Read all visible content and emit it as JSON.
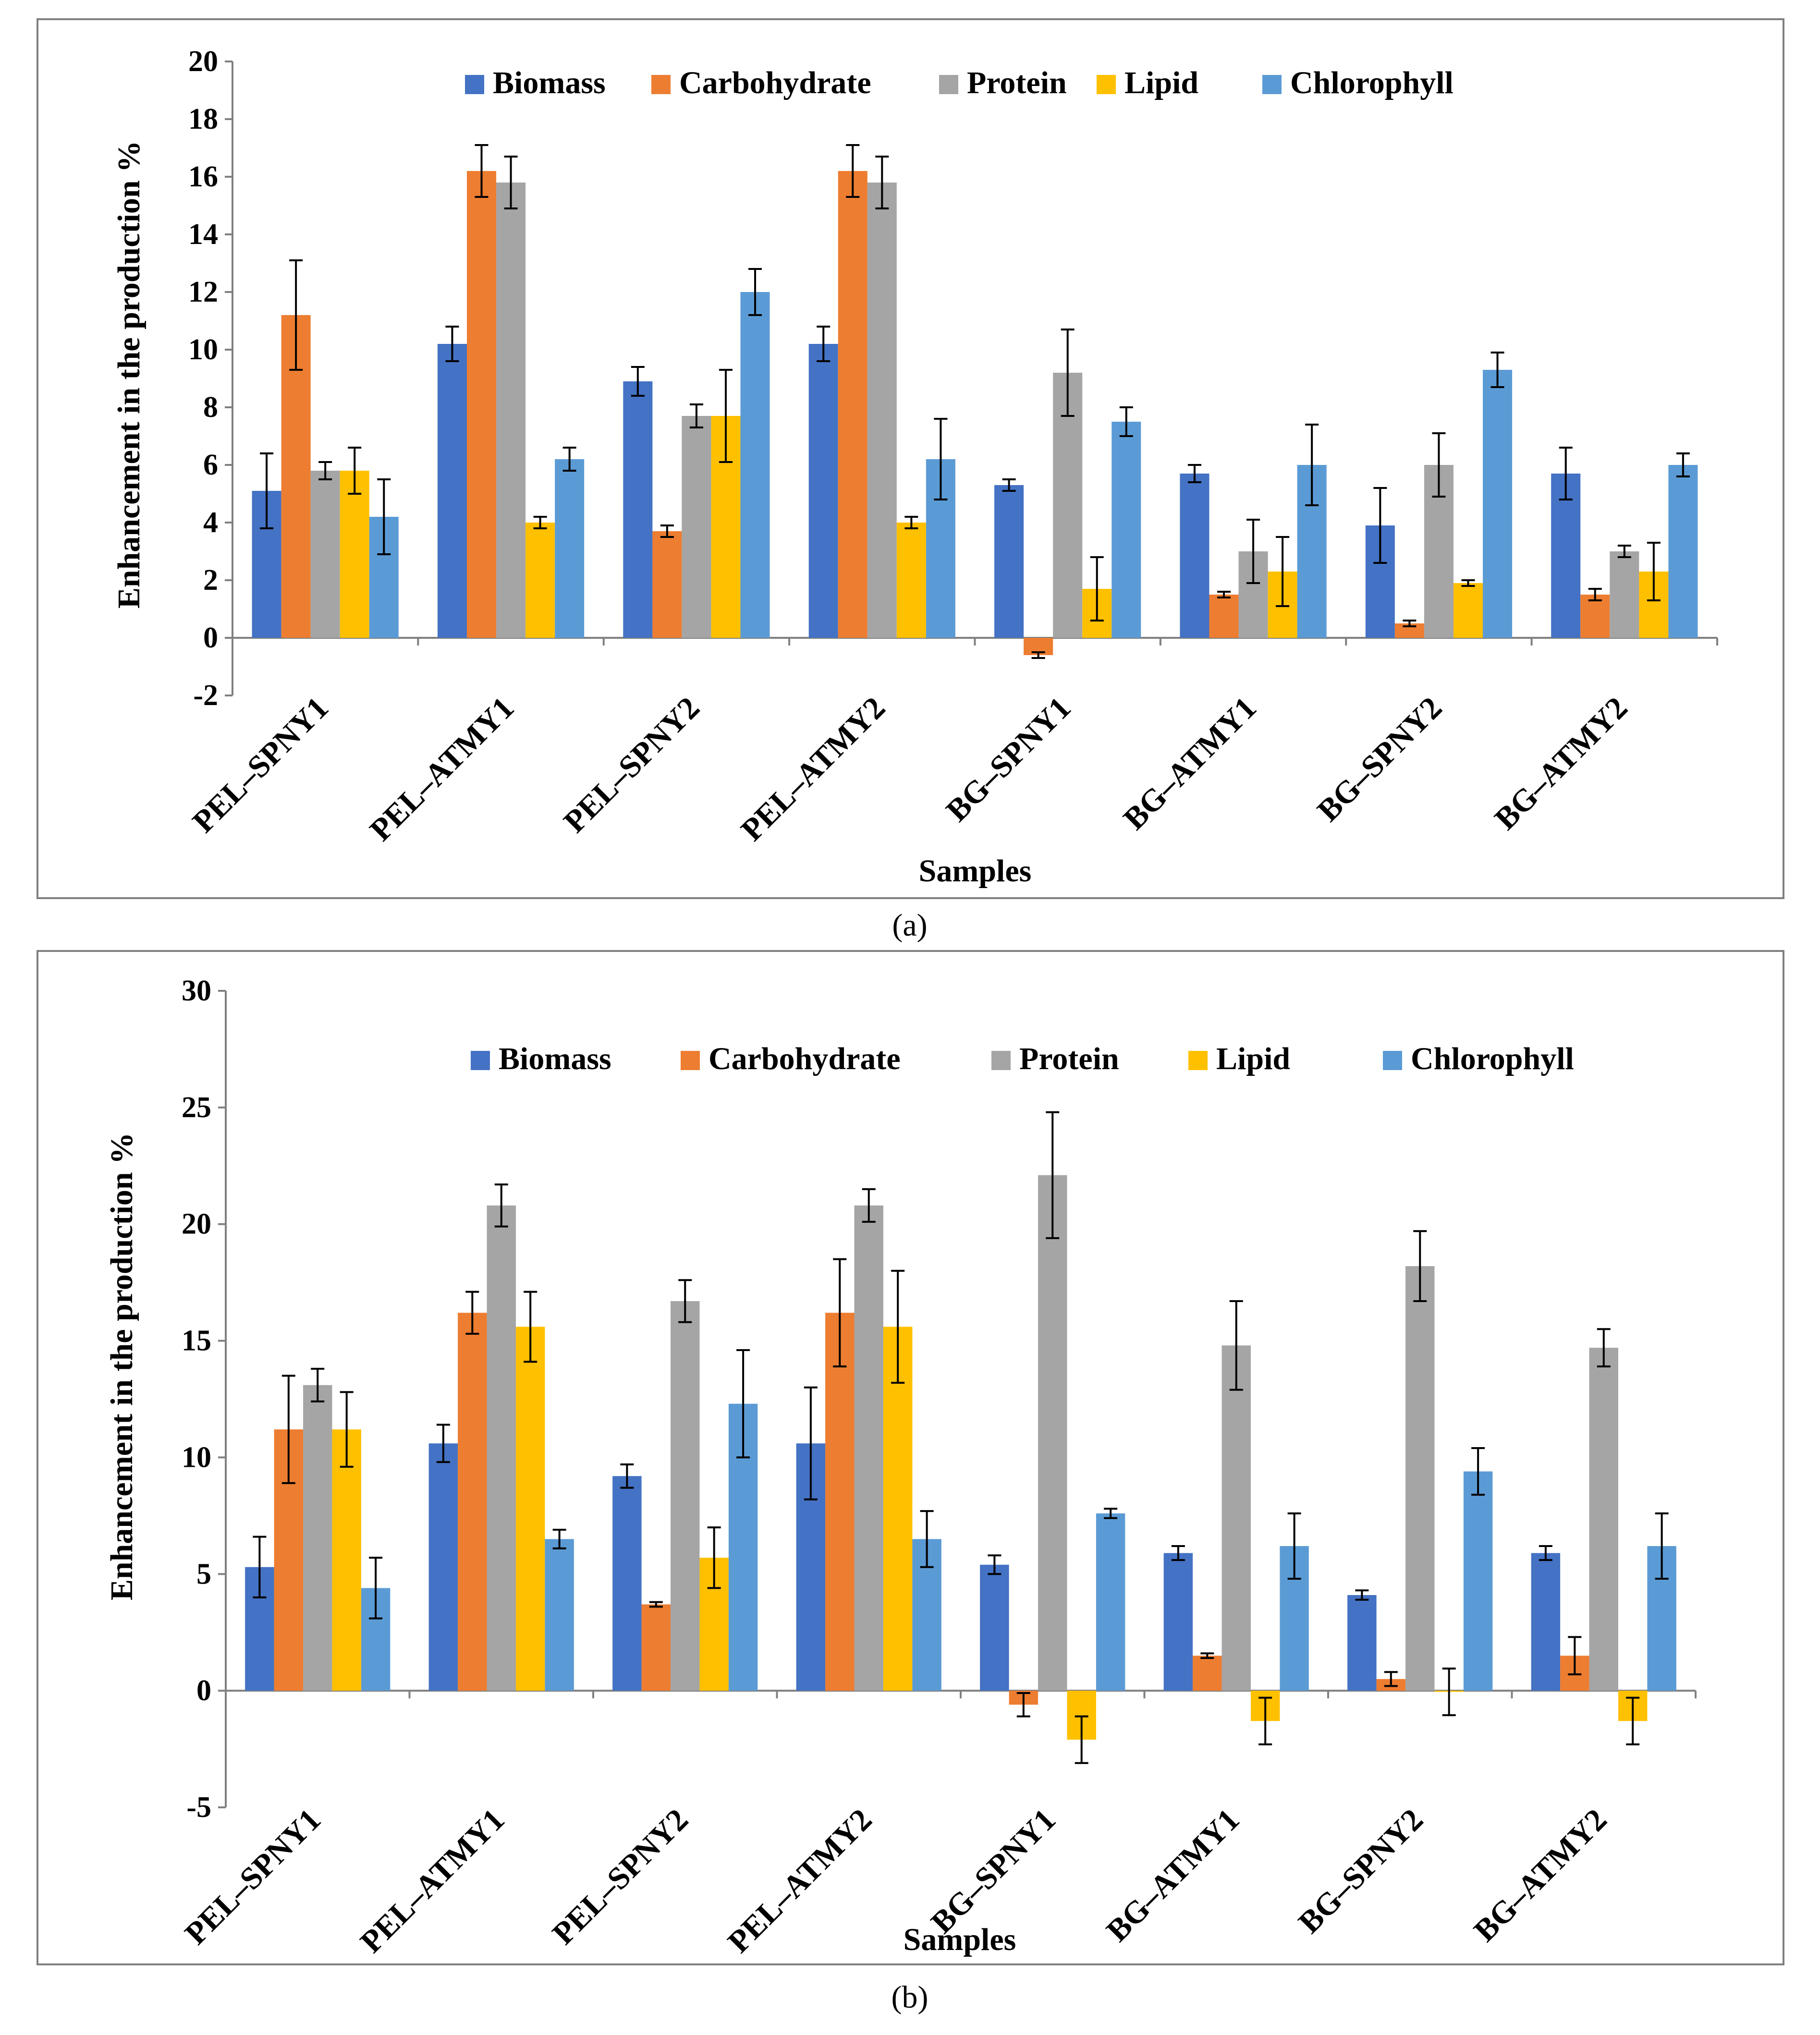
{
  "colors": {
    "Biomass": "#4472C4",
    "Carbohydrate": "#ED7D31",
    "Protein": "#A5A5A5",
    "Lipid": "#FFC000",
    "Chlorophyll": "#5B9BD5"
  },
  "chart_data": [
    {
      "type": "bar",
      "caption": "(a)",
      "title": "",
      "xlabel": "Samples",
      "ylabel": "Enhancement in the production  %",
      "ylim": [
        -2,
        20
      ],
      "ytick_step": 2,
      "yticks": [
        "-2",
        "0",
        "2",
        "4",
        "6",
        "8",
        "10",
        "12",
        "14",
        "16",
        "18",
        "20"
      ],
      "grid": false,
      "legend": "top",
      "categories": [
        "PEL–SPNY1",
        "PEL–ATMY1",
        "PEL–SPNY2",
        "PEL–ATMY2",
        "BG–SPNY1",
        "BG–ATMY1",
        "BG–SPNY2",
        "BG–ATMY2"
      ],
      "series": [
        {
          "name": "Biomass",
          "values": [
            5.1,
            10.2,
            8.9,
            10.2,
            5.3,
            5.7,
            3.9,
            5.7
          ],
          "errors": [
            1.3,
            0.6,
            0.5,
            0.6,
            0.2,
            0.3,
            1.3,
            0.9
          ]
        },
        {
          "name": "Carbohydrate",
          "values": [
            11.2,
            16.2,
            3.7,
            16.2,
            -0.6,
            1.5,
            0.5,
            1.5
          ],
          "errors": [
            1.9,
            0.9,
            0.2,
            0.9,
            0.1,
            0.1,
            0.1,
            0.2
          ]
        },
        {
          "name": "Protein",
          "values": [
            5.8,
            15.8,
            7.7,
            15.8,
            9.2,
            3.0,
            6.0,
            3.0
          ],
          "errors": [
            0.3,
            0.9,
            0.4,
            0.9,
            1.5,
            1.1,
            1.1,
            0.2
          ]
        },
        {
          "name": "Lipid",
          "values": [
            5.8,
            4.0,
            7.7,
            4.0,
            1.7,
            2.3,
            1.9,
            2.3
          ],
          "errors": [
            0.8,
            0.2,
            1.6,
            0.2,
            1.1,
            1.2,
            0.1,
            1.0
          ]
        },
        {
          "name": "Chlorophyll",
          "values": [
            4.2,
            6.2,
            12.0,
            6.2,
            7.5,
            6.0,
            9.3,
            6.0
          ],
          "errors": [
            1.3,
            0.4,
            0.8,
            1.4,
            0.5,
            1.4,
            0.6,
            0.4
          ]
        }
      ]
    },
    {
      "type": "bar",
      "caption": "(b)",
      "title": "",
      "xlabel": "Samples",
      "ylabel": "Enhancement in the production  %",
      "ylim": [
        -5,
        30
      ],
      "ytick_step": 5,
      "yticks": [
        "-5",
        "0",
        "5",
        "10",
        "15",
        "20",
        "25",
        "30"
      ],
      "grid": false,
      "legend": "top",
      "categories": [
        "PEL–SPNY1",
        "PEL–ATMY1",
        "PEL–SPNY2",
        "PEL–ATMY2",
        "BG–SPNY1",
        "BG–ATMY1",
        "BG–SPNY2",
        "BG–ATMY2"
      ],
      "series": [
        {
          "name": "Biomass",
          "values": [
            5.3,
            10.6,
            9.2,
            10.6,
            5.4,
            5.9,
            4.1,
            5.9
          ],
          "errors": [
            1.3,
            0.8,
            0.5,
            2.4,
            0.4,
            0.3,
            0.2,
            0.3
          ]
        },
        {
          "name": "Carbohydrate",
          "values": [
            11.2,
            16.2,
            3.7,
            16.2,
            -0.6,
            1.5,
            0.5,
            1.5
          ],
          "errors": [
            2.3,
            0.9,
            0.1,
            2.3,
            0.5,
            0.1,
            0.3,
            0.8
          ]
        },
        {
          "name": "Protein",
          "values": [
            13.1,
            20.8,
            16.7,
            20.8,
            22.1,
            14.8,
            18.2,
            14.7
          ],
          "errors": [
            0.7,
            0.9,
            0.9,
            0.7,
            2.7,
            1.9,
            1.5,
            0.8
          ]
        },
        {
          "name": "Lipid",
          "values": [
            11.2,
            15.6,
            5.7,
            15.6,
            -2.1,
            -1.3,
            -0.05,
            -1.3
          ],
          "errors": [
            1.6,
            1.5,
            1.3,
            2.4,
            1.0,
            1.0,
            1.0,
            1.0
          ]
        },
        {
          "name": "Chlorophyll",
          "values": [
            4.4,
            6.5,
            12.3,
            6.5,
            7.6,
            6.2,
            9.4,
            6.2
          ],
          "errors": [
            1.3,
            0.4,
            2.3,
            1.2,
            0.2,
            1.4,
            1.0,
            1.4
          ]
        }
      ]
    }
  ]
}
